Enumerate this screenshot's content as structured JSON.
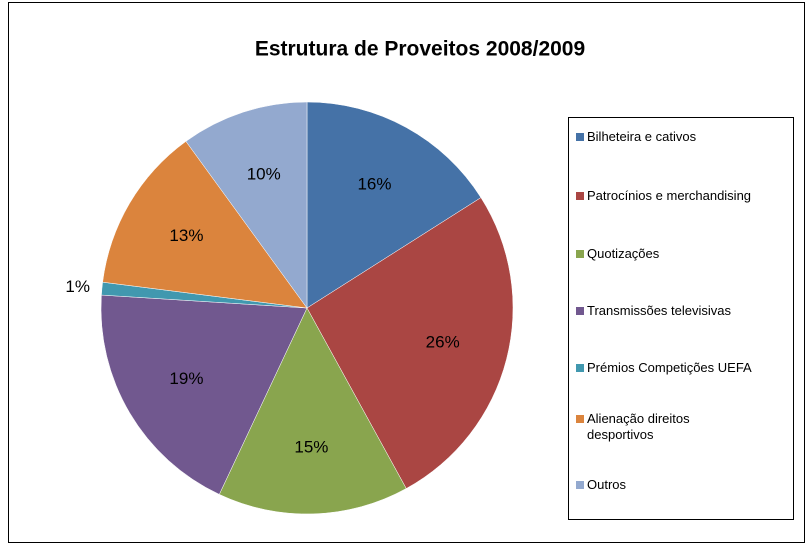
{
  "chart_data": {
    "type": "pie",
    "title": "Estrutura de Proveitos 2008/2009",
    "categories": [
      "Bilheteira e cativos",
      "Patrocínios e merchandising",
      "Quotizações",
      "Transmissões televisivas",
      "Prémios Competições UEFA",
      "Alienação direitos desportivos",
      "Outros"
    ],
    "values": [
      16,
      26,
      15,
      19,
      1,
      13,
      10
    ],
    "value_labels": [
      "16%",
      "26%",
      "15%",
      "19%",
      "1%",
      "13%",
      "10%"
    ],
    "colors": [
      "#4572a7",
      "#aa4643",
      "#89a54e",
      "#71588f",
      "#4198af",
      "#db843d",
      "#93a9cf"
    ],
    "legend": "right"
  }
}
